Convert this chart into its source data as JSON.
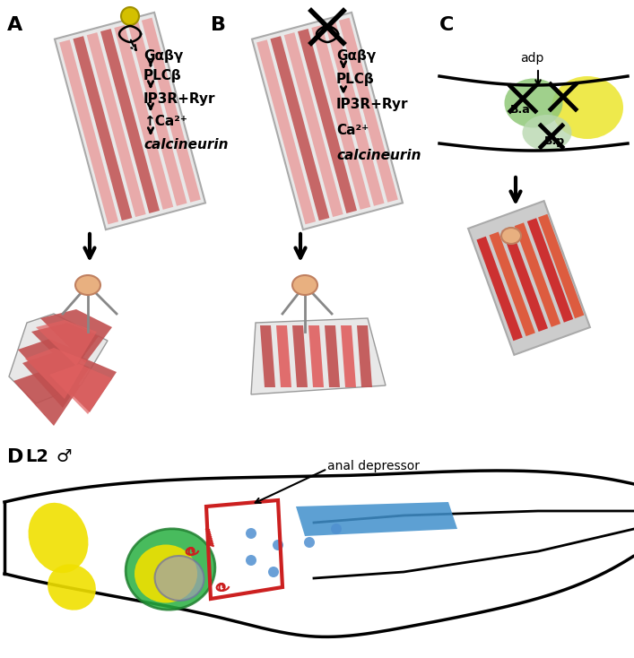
{
  "fig_width": 7.07,
  "fig_height": 7.34,
  "bg_color": "#ffffff",
  "label_A": "A",
  "label_B": "B",
  "label_C": "C",
  "label_D": "D",
  "cell_bg": "#e8e8e8",
  "muscle_color": "#e8a0a0",
  "muscle_dark": "#c05050",
  "nucleus_color": "#e8b080",
  "text_signaling_A": [
    "Gαβγ",
    "PLCβ",
    "IP3R+Ryr",
    "↑Ca²⁺",
    "calcineurin"
  ],
  "text_signaling_B": [
    "Gαβγ",
    "PLCβ",
    "IP3R+Ryr",
    "Ca²⁺",
    "calcineurin"
  ],
  "arrow_color": "#000000",
  "cross_color": "#000000",
  "yellow_circle": "#d4c000",
  "Ba_color": "#90c878",
  "Bp_color": "#a0c890",
  "yellow_wnt": "#e8e000",
  "blue_color": "#5090d0",
  "red_outline": "#cc2020",
  "green_outline": "#208020",
  "gray_outline": "#808080"
}
